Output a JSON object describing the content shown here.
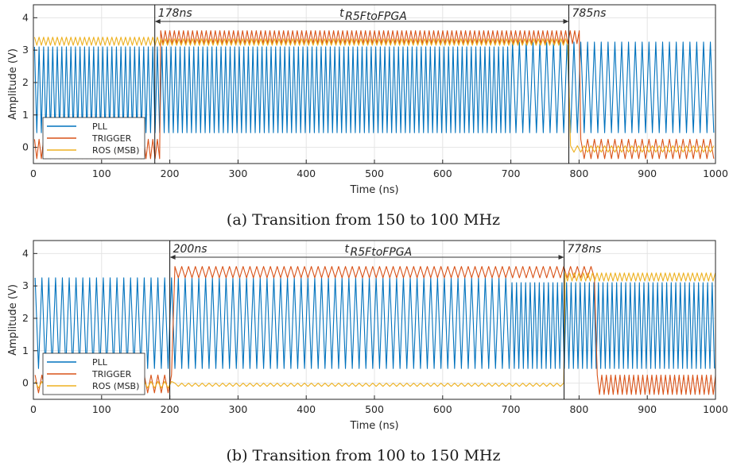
{
  "chart_data": [
    {
      "type": "line",
      "caption": "(a) Transition from 150 to 100 MHz",
      "xlabel": "Time (ns)",
      "ylabel": "Amplitude (V)",
      "xlim": [
        0,
        1000
      ],
      "ylim": [
        -0.5,
        4.4
      ],
      "xticks": [
        "0",
        "100",
        "200",
        "300",
        "400",
        "500",
        "600",
        "700",
        "800",
        "900",
        "1000"
      ],
      "yticks": [
        "0",
        "1",
        "2",
        "3",
        "4"
      ],
      "grid": true,
      "legend_position": "bottom-left",
      "annotations": {
        "start_label": "178ns",
        "end_label": "785ns",
        "span_label": "t",
        "span_subscript": "R5FtoFPGA",
        "start_x": 178,
        "end_x": 785
      },
      "series": [
        {
          "name": "PLL",
          "color": "#0072BD",
          "segments": [
            {
              "x_start": 0,
              "x_end": 700,
              "period_ns": 6.67,
              "low": 0.45,
              "high": 3.1
            },
            {
              "x_start": 700,
              "x_end": 1000,
              "period_ns": 10,
              "low": 0.45,
              "high": 3.25
            }
          ]
        },
        {
          "name": "TRIGGER",
          "color": "#D95319",
          "segments": [
            {
              "x_start": 0,
              "x_end": 185,
              "period_ns": 6.67,
              "low": -0.35,
              "high": 0.25
            },
            {
              "x_start": 185,
              "x_end": 800,
              "period_ns": 6.67,
              "low": 3.2,
              "high": 3.6
            },
            {
              "x_start": 800,
              "x_end": 1000,
              "period_ns": 10,
              "low": -0.35,
              "high": 0.25
            }
          ]
        },
        {
          "name": "ROS (MSB)",
          "color": "#EDB120",
          "segments": [
            {
              "x_start": 0,
              "x_end": 185,
              "period_ns": 6.67,
              "low": 3.15,
              "high": 3.4
            },
            {
              "x_start": 185,
              "x_end": 785,
              "period_ns": 6.67,
              "low": 3.15,
              "high": 3.35
            },
            {
              "x_start": 785,
              "x_end": 1000,
              "period_ns": 10,
              "low": -0.15,
              "high": 0.05
            }
          ]
        }
      ]
    },
    {
      "type": "line",
      "caption": "(b) Transition from 100 to 150 MHz",
      "xlabel": "Time (ns)",
      "ylabel": "Amplitude (V)",
      "xlim": [
        0,
        1000
      ],
      "ylim": [
        -0.5,
        4.4
      ],
      "xticks": [
        "0",
        "100",
        "200",
        "300",
        "400",
        "500",
        "600",
        "700",
        "800",
        "900",
        "1000"
      ],
      "yticks": [
        "0",
        "1",
        "2",
        "3",
        "4"
      ],
      "grid": true,
      "legend_position": "bottom-left",
      "annotations": {
        "start_label": "200ns",
        "end_label": "778ns",
        "span_label": "t",
        "span_subscript": "R5FtoFPGA",
        "start_x": 200,
        "end_x": 778
      },
      "series": [
        {
          "name": "PLL",
          "color": "#0072BD",
          "segments": [
            {
              "x_start": 0,
              "x_end": 700,
              "period_ns": 10,
              "low": 0.45,
              "high": 3.25
            },
            {
              "x_start": 700,
              "x_end": 1000,
              "period_ns": 6.67,
              "low": 0.45,
              "high": 3.1
            }
          ]
        },
        {
          "name": "TRIGGER",
          "color": "#D95319",
          "segments": [
            {
              "x_start": 0,
              "x_end": 205,
              "period_ns": 10,
              "low": -0.3,
              "high": 0.25
            },
            {
              "x_start": 205,
              "x_end": 825,
              "period_ns": 10,
              "low": 3.25,
              "high": 3.6
            },
            {
              "x_start": 825,
              "x_end": 1000,
              "period_ns": 6.67,
              "low": -0.35,
              "high": 0.25
            }
          ]
        },
        {
          "name": "ROS (MSB)",
          "color": "#EDB120",
          "segments": [
            {
              "x_start": 0,
              "x_end": 205,
              "period_ns": 10,
              "low": -0.15,
              "high": 0.05
            },
            {
              "x_start": 205,
              "x_end": 778,
              "period_ns": 10,
              "low": -0.1,
              "high": 0.0
            },
            {
              "x_start": 778,
              "x_end": 1000,
              "period_ns": 6.67,
              "low": 3.15,
              "high": 3.4
            }
          ]
        }
      ]
    }
  ]
}
